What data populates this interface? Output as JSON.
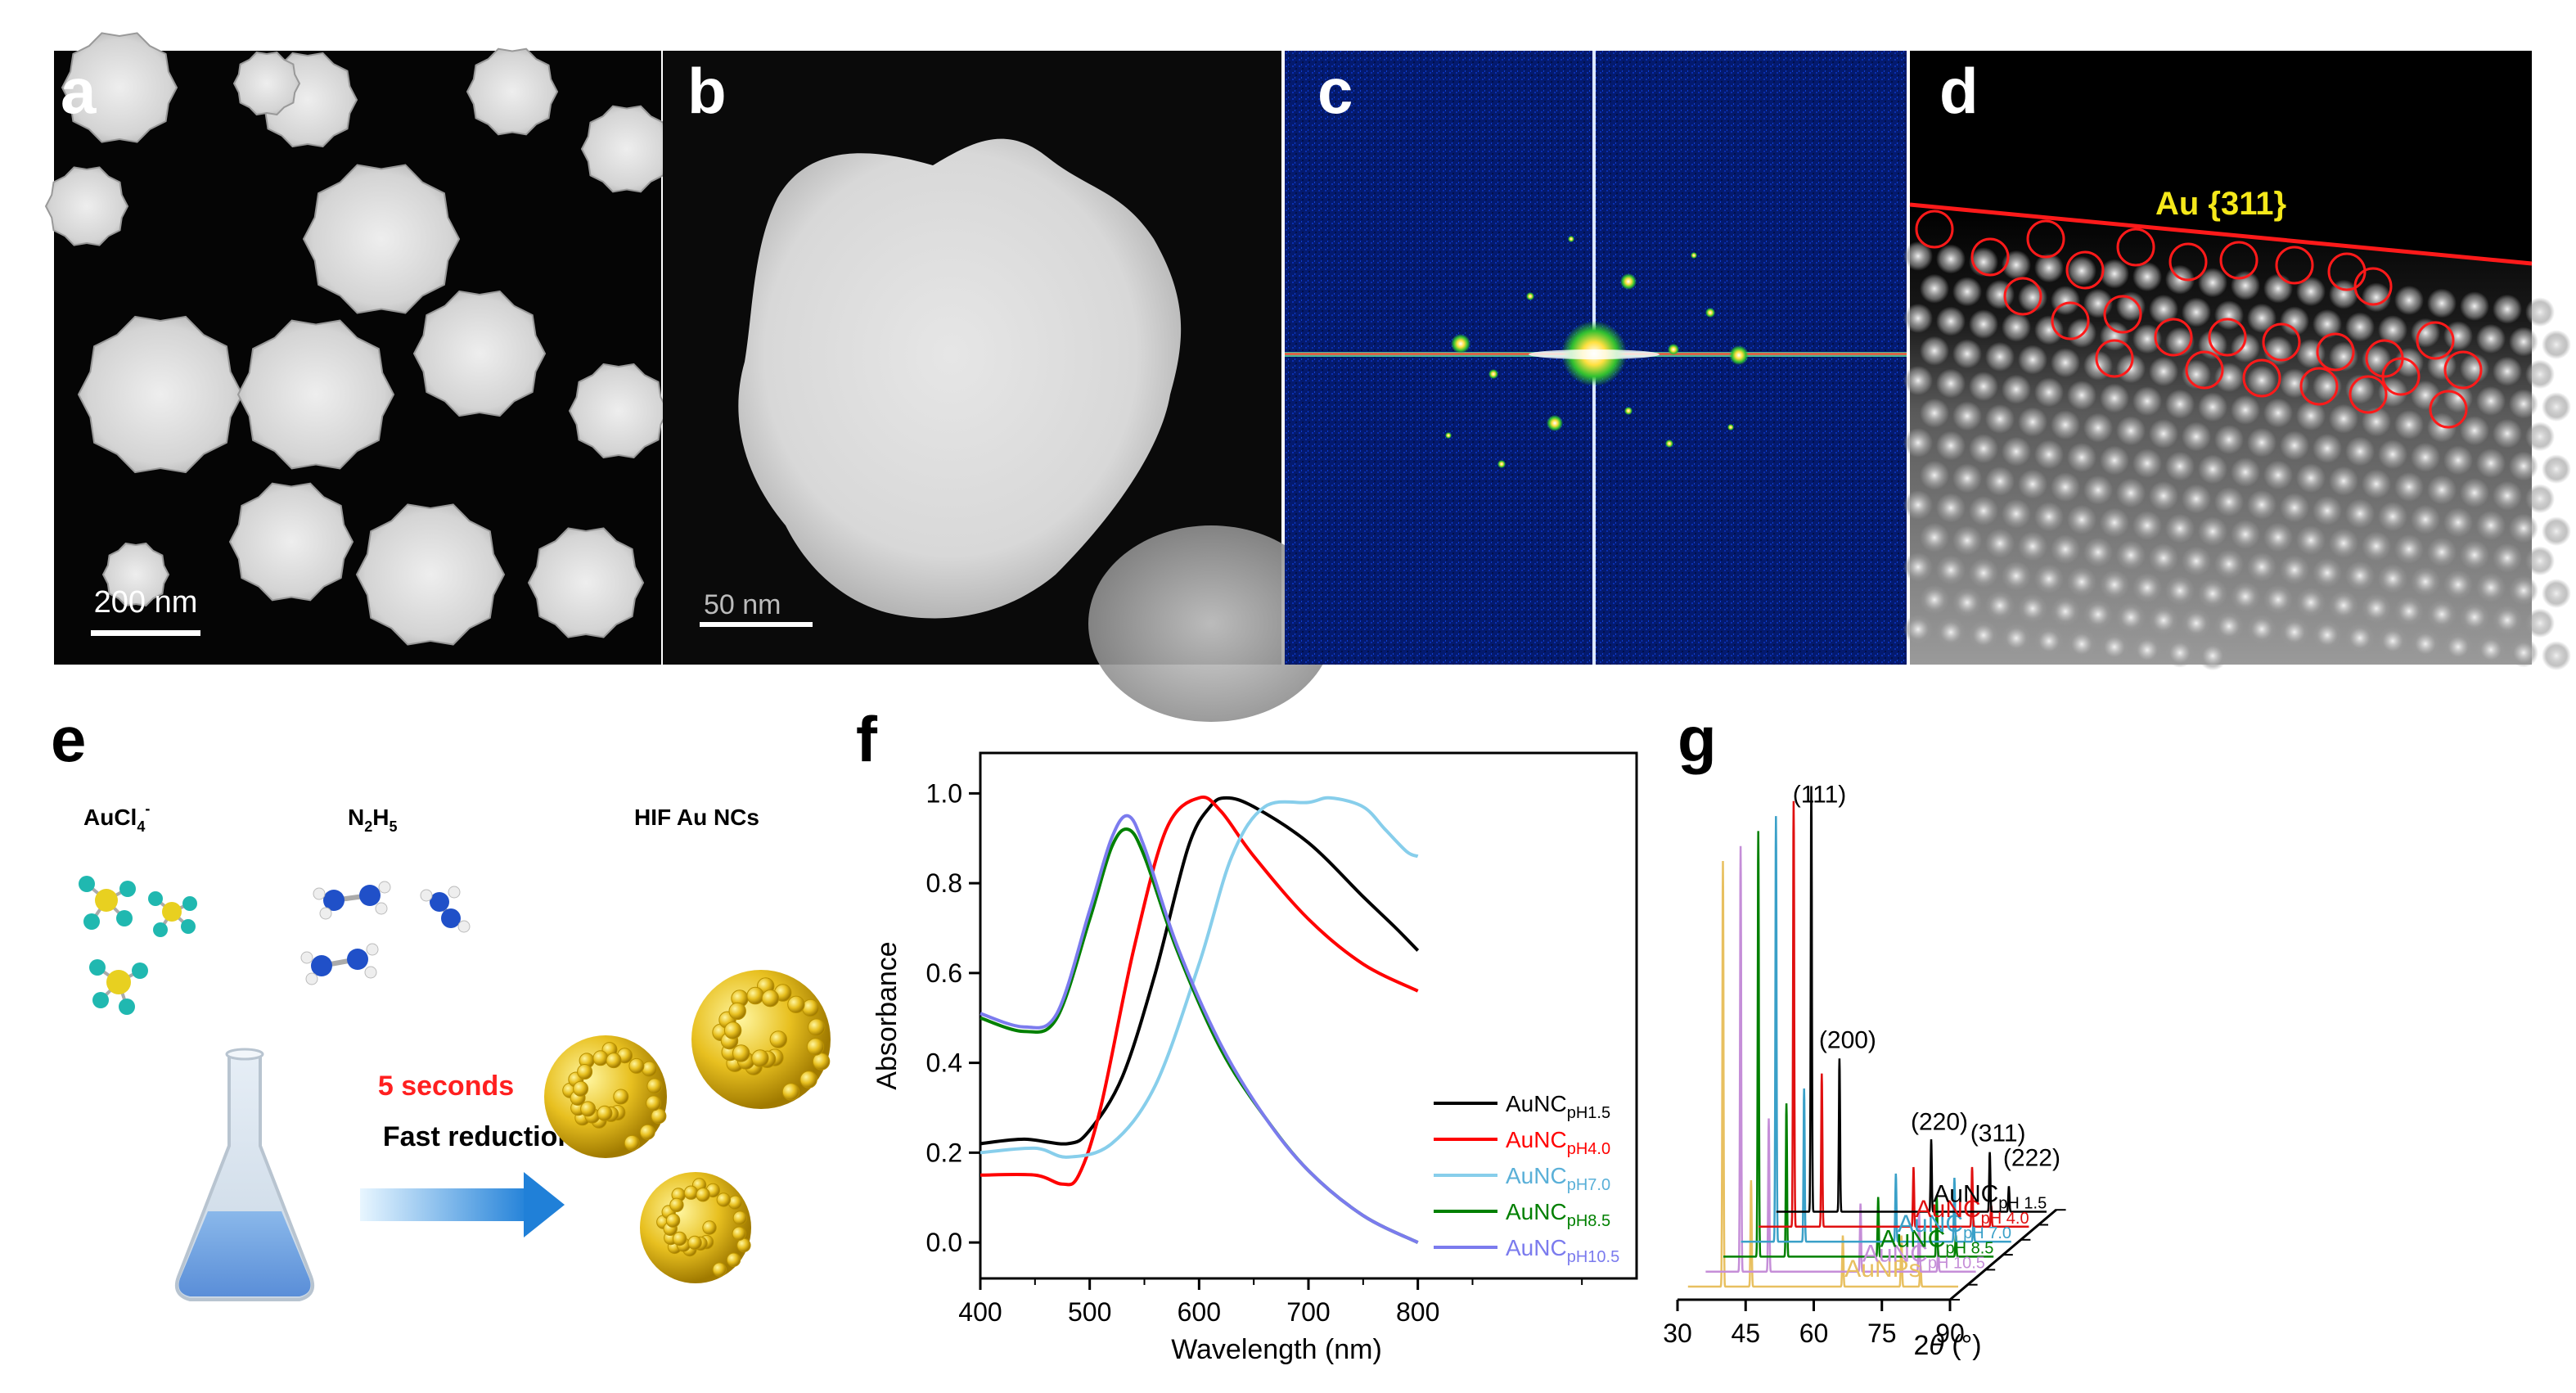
{
  "panel_letters": {
    "a": "a",
    "b": "b",
    "c": "c",
    "d": "d",
    "e": "e",
    "f": "f",
    "g": "g"
  },
  "panel_a": {
    "scalebar": "200 nm"
  },
  "panel_b": {
    "scalebar": "50 nm"
  },
  "panel_d": {
    "facet_label": "Au {311}",
    "line_color": "#ff1a1a",
    "label_color": "#f5e81a"
  },
  "panel_e": {
    "reagent1": "AuCl",
    "reagent1_sub": "4",
    "reagent1_sup": "-",
    "reagent2_a": "N",
    "reagent2_sub1": "2",
    "reagent2_b": "H",
    "reagent2_sub2": "5",
    "product": "HIF Au NCs",
    "time_label": "5 seconds",
    "process_label": "Fast reduction"
  },
  "chart_data": [
    {
      "type": "line",
      "panel": "f",
      "xlabel": "Wavelength (nm)",
      "ylabel": "Absorbance",
      "xlim": [
        400,
        1000
      ],
      "ylim": [
        -0.08,
        1.09
      ],
      "xticks": [
        400,
        500,
        600,
        700,
        800
      ],
      "yticks": [
        0.0,
        0.2,
        0.4,
        0.6,
        0.8,
        1.0
      ],
      "series": [
        {
          "name": "AuNC",
          "sub": "pH1.5",
          "color": "#000000",
          "points": [
            [
              400,
              0.22
            ],
            [
              440,
              0.23
            ],
            [
              480,
              0.22
            ],
            [
              500,
              0.25
            ],
            [
              530,
              0.37
            ],
            [
              560,
              0.6
            ],
            [
              590,
              0.88
            ],
            [
              610,
              0.97
            ],
            [
              625,
              0.99
            ],
            [
              650,
              0.97
            ],
            [
              700,
              0.89
            ],
            [
              750,
              0.77
            ],
            [
              780,
              0.7
            ],
            [
              800,
              0.65
            ]
          ]
        },
        {
          "name": "AuNC",
          "sub": "pH4.0",
          "color": "#ff0000",
          "points": [
            [
              400,
              0.15
            ],
            [
              450,
              0.15
            ],
            [
              475,
              0.13
            ],
            [
              490,
              0.15
            ],
            [
              510,
              0.3
            ],
            [
              540,
              0.65
            ],
            [
              570,
              0.92
            ],
            [
              600,
              0.99
            ],
            [
              620,
              0.96
            ],
            [
              650,
              0.86
            ],
            [
              700,
              0.72
            ],
            [
              750,
              0.62
            ],
            [
              800,
              0.56
            ]
          ]
        },
        {
          "name": "AuNC",
          "sub": "pH7.0",
          "color": "#87ceeb",
          "points": [
            [
              400,
              0.2
            ],
            [
              450,
              0.21
            ],
            [
              480,
              0.19
            ],
            [
              520,
              0.22
            ],
            [
              560,
              0.35
            ],
            [
              600,
              0.62
            ],
            [
              630,
              0.86
            ],
            [
              660,
              0.97
            ],
            [
              700,
              0.98
            ],
            [
              720,
              0.99
            ],
            [
              750,
              0.97
            ],
            [
              770,
              0.92
            ],
            [
              790,
              0.87
            ],
            [
              800,
              0.86
            ]
          ]
        },
        {
          "name": "AuNC",
          "sub": "pH8.5",
          "color": "#008000",
          "points": [
            [
              400,
              0.5
            ],
            [
              440,
              0.47
            ],
            [
              470,
              0.5
            ],
            [
              500,
              0.72
            ],
            [
              520,
              0.88
            ],
            [
              535,
              0.92
            ],
            [
              550,
              0.86
            ],
            [
              580,
              0.65
            ],
            [
              620,
              0.43
            ],
            [
              660,
              0.28
            ],
            [
              700,
              0.16
            ],
            [
              750,
              0.06
            ],
            [
              800,
              0.0
            ]
          ]
        },
        {
          "name": "AuNC",
          "sub": "pH10.5",
          "color": "#7b7bee",
          "points": [
            [
              400,
              0.51
            ],
            [
              440,
              0.48
            ],
            [
              470,
              0.51
            ],
            [
              500,
              0.74
            ],
            [
              520,
              0.9
            ],
            [
              535,
              0.95
            ],
            [
              550,
              0.88
            ],
            [
              580,
              0.66
            ],
            [
              620,
              0.44
            ],
            [
              660,
              0.28
            ],
            [
              700,
              0.16
            ],
            [
              750,
              0.06
            ],
            [
              800,
              0.0
            ]
          ]
        }
      ]
    },
    {
      "type": "line",
      "panel": "g",
      "xlabel_main": "2",
      "xlabel_italic": "θ",
      "xlabel_unit": " (°)",
      "xlim": [
        30,
        90
      ],
      "xticks": [
        30,
        45,
        60,
        75,
        90
      ],
      "peak_labels": [
        "(111)",
        "(200)",
        "(220)",
        "(311)",
        "(222)"
      ],
      "peak_positions_2theta": [
        38.2,
        44.4,
        64.6,
        77.5,
        81.7
      ],
      "series": [
        {
          "name": "AuNPs",
          "sub": "",
          "color": "#e8c060",
          "peak_heights": [
            1.0,
            0.25,
            0.12,
            0.12,
            0.05
          ]
        },
        {
          "name": "AuNC",
          "sub": "pH 10.5",
          "color": "#c58ed8",
          "peak_heights": [
            1.0,
            0.36,
            0.16,
            0.14,
            0.05
          ]
        },
        {
          "name": "AuNC",
          "sub": "pH 8.5",
          "color": "#008000",
          "peak_heights": [
            1.0,
            0.36,
            0.14,
            0.14,
            0.05
          ]
        },
        {
          "name": "AuNC",
          "sub": "pH 7.0",
          "color": "#3aa0c8",
          "peak_heights": [
            1.0,
            0.36,
            0.16,
            0.15,
            0.05
          ]
        },
        {
          "name": "AuNC",
          "sub": "pH 4.0",
          "color": "#e01010",
          "peak_heights": [
            1.0,
            0.36,
            0.14,
            0.14,
            0.05
          ]
        },
        {
          "name": "AuNC",
          "sub": "pH 1.5",
          "color": "#000000",
          "peak_heights": [
            1.0,
            0.36,
            0.17,
            0.14,
            0.06
          ]
        }
      ]
    }
  ]
}
